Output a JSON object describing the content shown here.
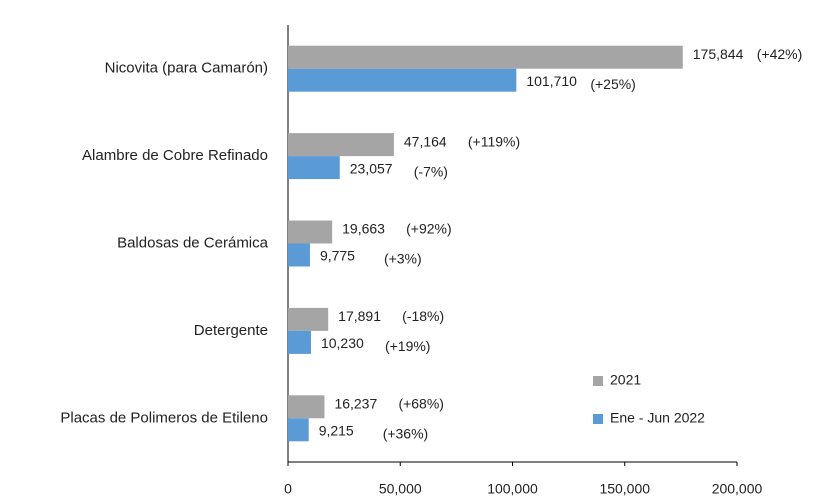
{
  "chart_data": {
    "type": "barh",
    "categories": [
      "Nicovita (para Camarón)",
      "Alambre de Cobre Refinado",
      "Baldosas de Cerámica",
      "Detergente",
      "Placas de Polimeros de Etileno"
    ],
    "series": [
      {
        "name": "2021",
        "color": "#a5a5a5",
        "values": [
          175844,
          47164,
          19663,
          17891,
          16237
        ],
        "value_labels": [
          "175,844",
          "47,164",
          "19,663",
          "17,891",
          "16,237"
        ],
        "annotations": [
          "(+42%)",
          "(+119%)",
          "(+92%)",
          "(-18%)",
          "(+68%)"
        ]
      },
      {
        "name": "Ene - Jun 2022",
        "color": "#5b9bd5",
        "values": [
          101710,
          23057,
          9775,
          10230,
          9215
        ],
        "value_labels": [
          "101,710",
          "23,057",
          "9,775",
          "10,230",
          "9,215"
        ],
        "annotations": [
          "(+25%)",
          "(-7%)",
          "(+3%)",
          "(+19%)",
          "(+36%)"
        ]
      }
    ],
    "xlim": [
      0,
      200000
    ],
    "xticks": [
      {
        "value": 0,
        "label": "0"
      },
      {
        "value": 50000,
        "label": "50,000"
      },
      {
        "value": 100000,
        "label": "100,000"
      },
      {
        "value": 150000,
        "label": "150,000"
      },
      {
        "value": 200000,
        "label": "200,000"
      }
    ],
    "grid": false,
    "legend": "lower right"
  }
}
